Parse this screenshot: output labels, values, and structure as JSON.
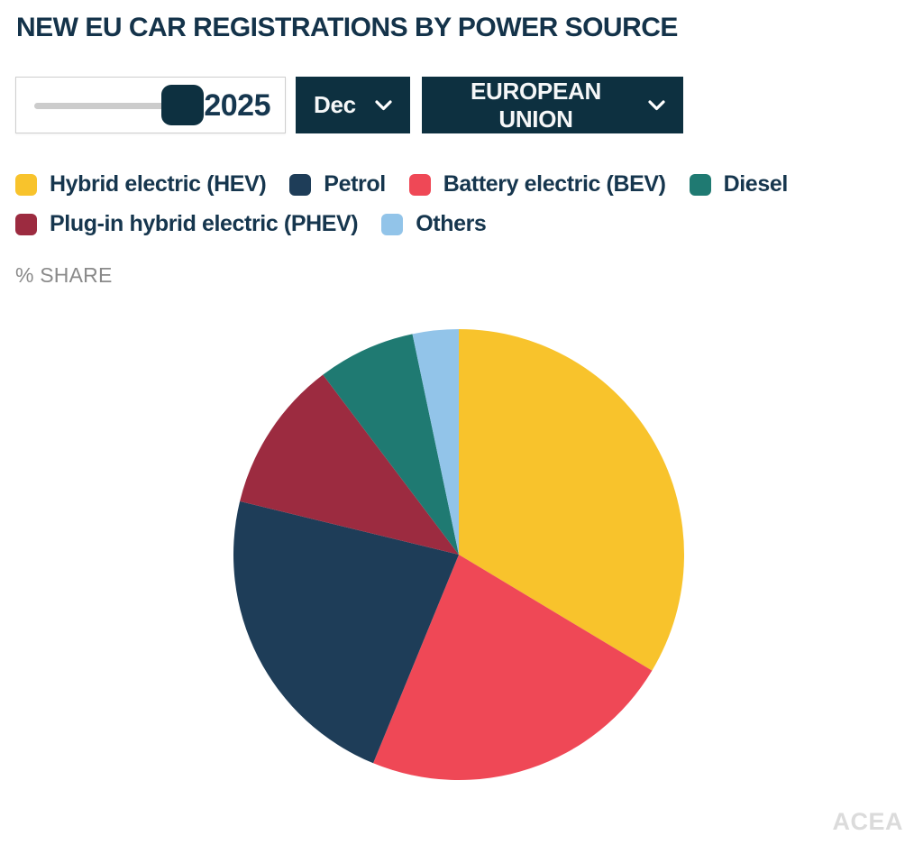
{
  "page": {
    "title": "NEW EU CAR REGISTRATIONS BY POWER SOURCE",
    "share_label": "% SHARE",
    "watermark": "ACEA"
  },
  "controls": {
    "year_slider": {
      "value": "2025"
    },
    "month_dropdown": {
      "value": "Dec"
    },
    "region_dropdown": {
      "value": "EUROPEAN UNION"
    }
  },
  "colors": {
    "accent_dark": "#0D3040",
    "title_text": "#14334A",
    "legend_text": "#16364E",
    "share_label_text": "#8A8A8A",
    "watermark_text": "#DBDBDB",
    "slider_track": "#CCCCCC",
    "slider_border": "#CFCFCF"
  },
  "chart_data": {
    "type": "pie",
    "title": "NEW EU CAR REGISTRATIONS BY POWER SOURCE",
    "unit_label": "% SHARE",
    "year": "2025",
    "month": "Dec",
    "region": "EUROPEAN UNION",
    "start_angle_deg": 0,
    "direction": "clockwise",
    "slices": [
      {
        "label": "Hybrid electric (HEV)",
        "value": 33.6,
        "color": "#F8C32C"
      },
      {
        "label": "Battery electric (BEV)",
        "value": 22.6,
        "color": "#EF4856"
      },
      {
        "label": "Petrol",
        "value": 22.6,
        "color": "#1E3D58"
      },
      {
        "label": "Plug-in hybrid electric (PHEV)",
        "value": 10.9,
        "color": "#9C2B40"
      },
      {
        "label": "Diesel",
        "value": 7.0,
        "color": "#1F7A72"
      },
      {
        "label": "Others",
        "value": 3.3,
        "color": "#92C4E9"
      }
    ],
    "legend_order": [
      0,
      2,
      1,
      4,
      3,
      5
    ],
    "legend_position": "top"
  }
}
